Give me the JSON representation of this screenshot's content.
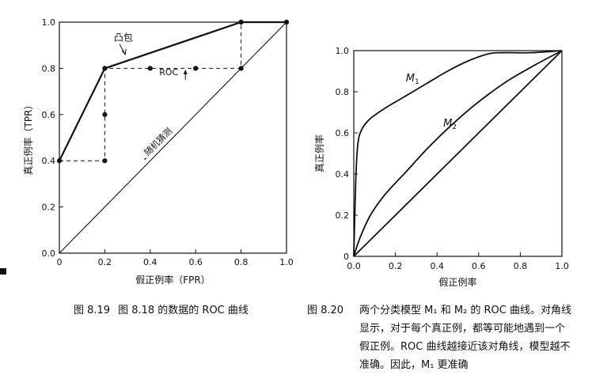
{
  "figures": [
    {
      "caption_number": "图 8.19",
      "caption_text": "图 8.18 的数据的 ROC 曲线"
    },
    {
      "caption_number": "图 8.20",
      "caption_text": "两个分类模型 M₁ 和 M₂ 的 ROC 曲线。对角线显示，对于每个真正例，都等可能地遇到一个假正例。ROC 曲线越接近该对角线，模型越不准确。因此，M₁ 更准确"
    }
  ],
  "chart_data": [
    {
      "type": "line",
      "xlabel": "假正例率（FPR）",
      "ylabel": "真正例率（TPR）",
      "xlim": [
        0,
        1
      ],
      "ylim": [
        0,
        1
      ],
      "x_ticks": [
        "0",
        "0.2",
        "0.4",
        "0.6",
        "0.8",
        "1.0"
      ],
      "y_ticks": [
        "0.0",
        "0.2",
        "0.4",
        "0.6",
        "0.8",
        "1.0"
      ],
      "grid": false,
      "annotations": [
        "凸包",
        "ROC",
        "随机猜测"
      ],
      "series": [
        {
          "role": "convex-hull",
          "style": "solid",
          "points": [
            [
              0,
              0.4
            ],
            [
              0.2,
              0.8
            ],
            [
              0.8,
              1.0
            ],
            [
              1.0,
              1.0
            ]
          ]
        },
        {
          "role": "roc",
          "style": "dashed",
          "points": [
            [
              0,
              0.4
            ],
            [
              0.2,
              0.4
            ],
            [
              0.2,
              0.6
            ],
            [
              0.2,
              0.8
            ],
            [
              0.4,
              0.8
            ],
            [
              0.6,
              0.8
            ],
            [
              0.8,
              0.8
            ],
            [
              0.8,
              1.0
            ],
            [
              1.0,
              1.0
            ]
          ]
        },
        {
          "role": "random-guess",
          "style": "solid",
          "points": [
            [
              0,
              0
            ],
            [
              1,
              1
            ]
          ]
        }
      ],
      "dots": [
        [
          0,
          0.4
        ],
        [
          0.2,
          0.4
        ],
        [
          0.2,
          0.6
        ],
        [
          0.2,
          0.8
        ],
        [
          0.4,
          0.8
        ],
        [
          0.6,
          0.8
        ],
        [
          0.8,
          0.8
        ],
        [
          0.8,
          1.0
        ],
        [
          1.0,
          1.0
        ]
      ]
    },
    {
      "type": "line",
      "xlabel": "假正例率",
      "ylabel": "真正例率",
      "xlim": [
        0,
        1
      ],
      "ylim": [
        0,
        1
      ],
      "x_ticks": [
        "0.0",
        "0.2",
        "0.4",
        "0.6",
        "0.8",
        "1.0"
      ],
      "y_ticks": [
        "0",
        "0.2",
        "0.4",
        "0.6",
        "0.8",
        "1.0"
      ],
      "grid": false,
      "series": [
        {
          "name": "M1",
          "label_main": "M",
          "label_sub": "1",
          "points": [
            [
              0,
              0
            ],
            [
              0.01,
              0.38
            ],
            [
              0.02,
              0.55
            ],
            [
              0.04,
              0.62
            ],
            [
              0.08,
              0.67
            ],
            [
              0.15,
              0.72
            ],
            [
              0.25,
              0.78
            ],
            [
              0.35,
              0.84
            ],
            [
              0.45,
              0.9
            ],
            [
              0.55,
              0.95
            ],
            [
              0.65,
              0.985
            ],
            [
              0.72,
              0.99
            ],
            [
              0.85,
              0.99
            ],
            [
              1.0,
              1.0
            ]
          ]
        },
        {
          "name": "M2",
          "label_main": "M",
          "label_sub": "2",
          "points": [
            [
              0,
              0
            ],
            [
              0.03,
              0.09
            ],
            [
              0.08,
              0.2
            ],
            [
              0.15,
              0.3
            ],
            [
              0.25,
              0.41
            ],
            [
              0.35,
              0.52
            ],
            [
              0.45,
              0.62
            ],
            [
              0.55,
              0.71
            ],
            [
              0.65,
              0.79
            ],
            [
              0.75,
              0.86
            ],
            [
              0.87,
              0.93
            ],
            [
              1.0,
              1.0
            ]
          ]
        },
        {
          "name": "diagonal",
          "points": [
            [
              0,
              0
            ],
            [
              1,
              1
            ]
          ]
        }
      ]
    }
  ]
}
